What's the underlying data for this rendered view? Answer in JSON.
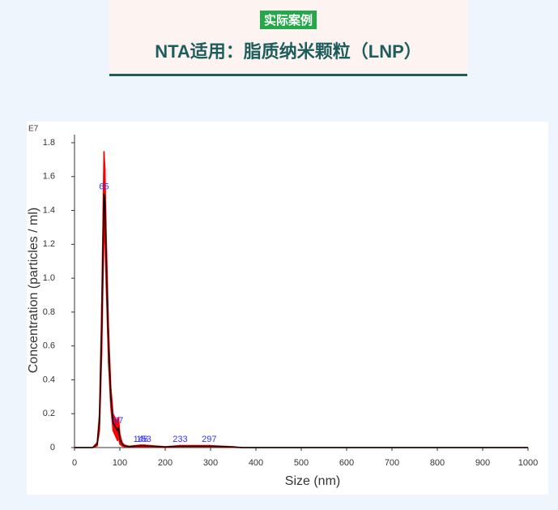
{
  "header": {
    "badge": "实际案例",
    "title": "NTA适用：脂质纳米颗粒（LNP）"
  },
  "chart_data": {
    "type": "line",
    "y_exponent": "E7",
    "xlabel": "Size (nm)",
    "ylabel": "Concentration (particles / ml)",
    "xlim": [
      0,
      1000
    ],
    "ylim": [
      0,
      1.8
    ],
    "xticks": [
      0,
      100,
      200,
      300,
      400,
      500,
      600,
      700,
      800,
      900,
      1000
    ],
    "yticks": [
      0,
      0.2,
      0.4,
      0.6,
      0.8,
      {
        "value": 1,
        "label": "1.0"
      },
      1.2,
      1.4,
      1.6,
      1.8
    ],
    "grid": false,
    "series": [
      {
        "color": "#000000",
        "error_color": "#ff0000",
        "x": [
          0,
          40,
          50,
          55,
          60,
          63,
          65,
          67,
          70,
          75,
          80,
          85,
          90,
          95,
          97,
          100,
          105,
          110,
          120,
          146,
          153,
          200,
          233,
          297,
          350,
          370,
          400,
          1000
        ],
        "values": [
          0,
          0,
          0.02,
          0.15,
          0.7,
          1.2,
          1.5,
          1.45,
          1.1,
          0.6,
          0.3,
          0.15,
          0.12,
          0.1,
          0.12,
          0.05,
          0.02,
          0.01,
          0.005,
          0.01,
          0.01,
          0.003,
          0.008,
          0.008,
          0.003,
          0,
          0,
          0
        ],
        "errors": [
          0,
          0,
          0.01,
          0.05,
          0.15,
          0.2,
          0.25,
          0.2,
          0.15,
          0.1,
          0.06,
          0.05,
          0.05,
          0.06,
          0.06,
          0.03,
          0.01,
          0.005,
          0.003,
          0.005,
          0.005,
          0.002,
          0.004,
          0.004,
          0.002,
          0,
          0,
          0
        ]
      }
    ],
    "peak_labels": [
      65,
      97,
      146,
      153,
      233,
      297
    ],
    "peak_color": "#3333ff"
  }
}
